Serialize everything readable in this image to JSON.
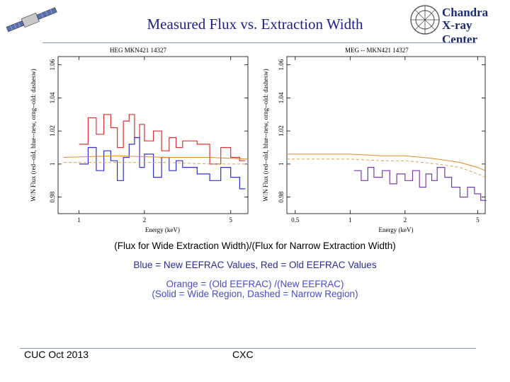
{
  "slide": {
    "title": "Measured Flux vs. Extraction Width",
    "logo": {
      "line1": "Chandra",
      "line2": "X-ray Center"
    },
    "captions": {
      "line1": "(Flux for Wide Extraction Width)/(Flux for Narrow Extraction Width)",
      "line2": "Blue = New EEFRAC Values, Red = Old EEFRAC Values",
      "line3": "Orange = (Old EEFRAC) /(New EEFRAC)",
      "line4": "(Solid = Wide Region, Dashed = Narrow Region)"
    },
    "footer": {
      "left": "CUC Oct  2013",
      "center": "CXC"
    }
  },
  "colors": {
    "title": "#20208c",
    "red": "#e03030",
    "blue": "#3030d0",
    "purple": "#7a3aa8",
    "orange": "#e08a28",
    "orange_dashed": "#e0a050"
  },
  "chart_data": [
    {
      "type": "line",
      "title": "HEG    MKN421  14327",
      "xlabel": "Energy (keV)",
      "ylabel": "W/N Flux (red--old, blue--new, orng--old: dashesw)",
      "xscale": "log",
      "xlim": [
        0.8,
        6.0
      ],
      "ylim": [
        0.97,
        1.065
      ],
      "xticks": [
        1,
        2,
        5
      ],
      "yticks": [
        0.98,
        1,
        1.02,
        1.04,
        1.06
      ],
      "series": [
        {
          "name": "Old EEFRAC (red)",
          "color": "red",
          "style": "step",
          "x": [
            1.0,
            1.1,
            1.2,
            1.3,
            1.4,
            1.5,
            1.6,
            1.7,
            1.8,
            1.9,
            2.0,
            2.2,
            2.4,
            2.6,
            2.8,
            3.0,
            3.5,
            4.0,
            4.5,
            5.0,
            5.5
          ],
          "y": [
            1.012,
            1.028,
            1.018,
            1.03,
            1.022,
            1.01,
            1.026,
            1.03,
            1.016,
            1.024,
            1.014,
            1.02,
            1.008,
            1.016,
            1.01,
            1.014,
            1.012,
            1.0,
            1.01,
            1.004,
            1.002
          ]
        },
        {
          "name": "New EEFRAC (blue)",
          "color": "blue",
          "style": "step",
          "x": [
            1.0,
            1.1,
            1.2,
            1.3,
            1.4,
            1.5,
            1.6,
            1.7,
            1.8,
            1.9,
            2.0,
            2.2,
            2.4,
            2.6,
            2.8,
            3.0,
            3.5,
            4.0,
            4.5,
            5.0,
            5.5
          ],
          "y": [
            1.0,
            1.01,
            0.996,
            1.008,
            1.002,
            0.99,
            1.004,
            1.012,
            1.016,
            0.998,
            1.006,
            0.992,
            1.004,
            0.996,
            1.002,
            0.998,
            0.994,
            0.99,
            0.998,
            0.992,
            0.985
          ]
        },
        {
          "name": "Old/New wide (orange solid)",
          "color": "orange",
          "style": "line",
          "x": [
            0.85,
            1.5,
            2.5,
            4.0,
            6.0
          ],
          "y": [
            1.004,
            1.005,
            1.004,
            1.004,
            1.003
          ]
        },
        {
          "name": "Old/New narrow (orange dashed)",
          "color": "orange_dashed",
          "style": "dashed",
          "x": [
            0.85,
            1.5,
            2.5,
            4.0,
            6.0
          ],
          "y": [
            1.001,
            1.001,
            1.001,
            1.0,
            1.0
          ]
        }
      ]
    },
    {
      "type": "line",
      "title": "MEG -- MKN421  14327",
      "xlabel": "Energy (keV)",
      "ylabel": "W/N Flux (red--old, blue--new, orng--old: dashesw)",
      "xscale": "log",
      "xlim": [
        0.45,
        5.5
      ],
      "ylim": [
        0.97,
        1.065
      ],
      "xticks": [
        0.5,
        1,
        2,
        5
      ],
      "yticks": [
        0.98,
        1,
        1.02,
        1.04,
        1.06
      ],
      "series": [
        {
          "name": "Old/New wide (orange solid)",
          "color": "orange",
          "style": "line",
          "x": [
            0.45,
            0.7,
            1.0,
            1.5,
            2.0,
            2.5,
            3.0,
            4.0,
            5.0,
            5.5
          ],
          "y": [
            1.006,
            1.006,
            1.006,
            1.005,
            1.005,
            1.004,
            1.003,
            1.001,
            0.998,
            0.996
          ]
        },
        {
          "name": "Old/New narrow (orange dashed)",
          "color": "orange_dashed",
          "style": "dashed",
          "x": [
            0.45,
            0.7,
            1.0,
            1.5,
            2.0,
            2.5,
            3.0,
            4.0,
            5.0,
            5.5
          ],
          "y": [
            1.003,
            1.003,
            1.003,
            1.002,
            1.002,
            1.001,
            1.0,
            0.998,
            0.994,
            0.992
          ]
        },
        {
          "name": "New EEFRAC (blue/purple)",
          "color": "purple",
          "style": "step",
          "x": [
            1.05,
            1.15,
            1.25,
            1.35,
            1.5,
            1.65,
            1.8,
            2.0,
            2.2,
            2.4,
            2.6,
            2.8,
            3.0,
            3.3,
            3.6,
            4.0,
            4.4,
            4.8,
            5.2
          ],
          "y": [
            0.996,
            0.99,
            0.998,
            0.992,
            0.996,
            0.988,
            0.994,
            0.99,
            0.996,
            0.986,
            0.994,
            0.99,
            0.998,
            0.992,
            0.986,
            0.98,
            0.986,
            0.982,
            0.978
          ]
        }
      ]
    }
  ]
}
